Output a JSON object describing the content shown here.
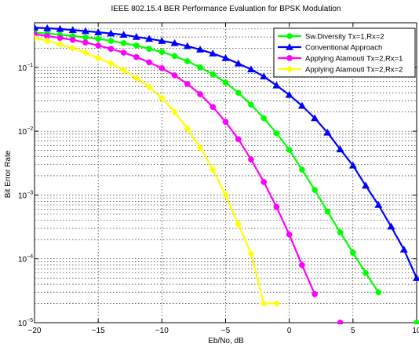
{
  "chart_data": {
    "type": "line",
    "title": "IEEE 802.15.4 BER Performance Evaluation for BPSK Modulation",
    "xlabel": "Eb/No, dB",
    "ylabel": "Bit Error Rate",
    "xlim": [
      -20,
      10
    ],
    "ylim": [
      1e-05,
      0.5
    ],
    "yscale": "log",
    "grid": true,
    "legend_position": "top-right",
    "x_ticks": [
      -20,
      -15,
      -10,
      -5,
      0,
      5,
      10
    ],
    "y_ticks": [
      {
        "value": 1e-05,
        "base": "10",
        "exp": "-5"
      },
      {
        "value": 0.0001,
        "base": "10",
        "exp": "-4"
      },
      {
        "value": 0.001,
        "base": "10",
        "exp": "-3"
      },
      {
        "value": 0.01,
        "base": "10",
        "exp": "-2"
      },
      {
        "value": 0.1,
        "base": "10",
        "exp": "-1"
      }
    ],
    "series": [
      {
        "name": "Sw.Diversity Tx=1,Rx=2",
        "color": "#00ff00",
        "marker": "circle",
        "x": [
          -20,
          -19,
          -18,
          -17,
          -16,
          -15,
          -14,
          -13,
          -12,
          -11,
          -10,
          -9,
          -8,
          -7,
          -6,
          -5,
          -4,
          -3,
          -2,
          -1,
          0,
          1,
          2,
          3,
          4,
          5,
          6,
          7,
          8,
          9,
          10
        ],
        "y": [
          0.35,
          0.34,
          0.325,
          0.31,
          0.295,
          0.28,
          0.26,
          0.24,
          0.22,
          0.195,
          0.175,
          0.15,
          0.125,
          0.1,
          0.078,
          0.058,
          0.04,
          0.026,
          0.016,
          0.0093,
          0.0051,
          0.0025,
          0.0012,
          0.00055,
          0.00026,
          0.000125,
          6e-05,
          3e-05,
          null,
          null,
          1e-05
        ]
      },
      {
        "name": "Conventional Approach",
        "color": "#0000ff",
        "marker": "triangle",
        "x": [
          -20,
          -19,
          -18,
          -17,
          -16,
          -15,
          -14,
          -13,
          -12,
          -11,
          -10,
          -9,
          -8,
          -7,
          -6,
          -5,
          -4,
          -3,
          -2,
          -1,
          0,
          1,
          2,
          3,
          4,
          5,
          6,
          7,
          8,
          9,
          10
        ],
        "y": [
          0.42,
          0.41,
          0.4,
          0.385,
          0.37,
          0.355,
          0.34,
          0.325,
          0.3,
          0.28,
          0.26,
          0.24,
          0.215,
          0.19,
          0.165,
          0.14,
          0.115,
          0.093,
          0.072,
          0.052,
          0.037,
          0.025,
          0.016,
          0.0095,
          0.0052,
          0.0029,
          0.0014,
          0.0007,
          0.00032,
          0.00014,
          5e-05
        ]
      },
      {
        "name": "Applying Alamouti Tx=2,Rx=1",
        "color": "#ff00ff",
        "marker": "circle",
        "x": [
          -20,
          -19,
          -18,
          -17,
          -16,
          -15,
          -14,
          -13,
          -12,
          -11,
          -10,
          -9,
          -8,
          -7,
          -6,
          -5,
          -4,
          -3,
          -2,
          -1,
          0,
          1,
          2,
          3,
          4
        ],
        "y": [
          0.33,
          0.31,
          0.29,
          0.27,
          0.245,
          0.22,
          0.195,
          0.17,
          0.145,
          0.12,
          0.097,
          0.075,
          0.055,
          0.038,
          0.024,
          0.014,
          0.0075,
          0.0036,
          0.0016,
          0.00065,
          0.00024,
          8e-05,
          2.8e-05,
          null,
          1e-05
        ]
      },
      {
        "name": "Applying Alamouti Tx=2,Rx=2",
        "color": "#ffff00",
        "marker": "diamond",
        "x": [
          -20,
          -19,
          -18,
          -17,
          -16,
          -15,
          -14,
          -13,
          -12,
          -11,
          -10,
          -9,
          -8,
          -7,
          -6,
          -5,
          -4,
          -3,
          -2,
          -1
        ],
        "y": [
          0.29,
          0.26,
          0.23,
          0.2,
          0.17,
          0.14,
          0.115,
          0.09,
          0.068,
          0.049,
          0.033,
          0.02,
          0.011,
          0.0055,
          0.0025,
          0.001,
          0.00035,
          0.00012,
          2e-05,
          2e-05
        ]
      }
    ]
  }
}
